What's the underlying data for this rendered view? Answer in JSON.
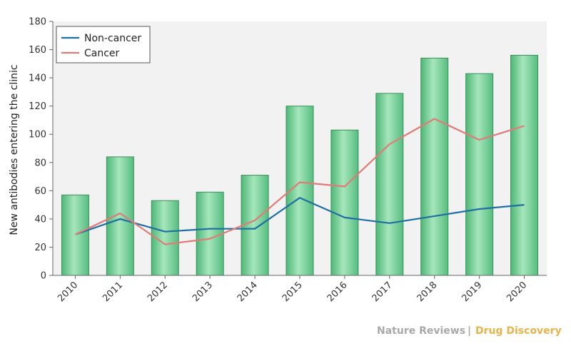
{
  "chart_data": {
    "type": "bar",
    "ylabel": "New antibodies entering the clinic",
    "xlabel": "",
    "ylim": [
      0,
      180
    ],
    "yticks": [
      0,
      20,
      40,
      60,
      80,
      100,
      120,
      140,
      160,
      180
    ],
    "categories": [
      "2010",
      "2011",
      "2012",
      "2013",
      "2014",
      "2015",
      "2016",
      "2017",
      "2018",
      "2019",
      "2020"
    ],
    "values": [
      57,
      84,
      53,
      59,
      71,
      120,
      103,
      129,
      154,
      143,
      156
    ],
    "bar_color": "#86d9a3",
    "series": [
      {
        "name": "Non-cancer",
        "type": "line",
        "color": "#1f6fa3",
        "values": [
          29,
          40,
          31,
          33,
          33,
          55,
          41,
          37,
          42,
          47,
          50
        ]
      },
      {
        "name": "Cancer",
        "type": "line",
        "color": "#e07b78",
        "values": [
          29,
          44,
          22,
          26,
          39,
          66,
          63,
          93,
          111,
          96,
          106
        ]
      }
    ],
    "legend_position": "top-left",
    "grid": false
  },
  "credit": {
    "left": "Nature Reviews",
    "separator": "|",
    "right": "Drug Discovery",
    "left_color": "#a9a9a9",
    "right_color": "#e9b34a"
  }
}
